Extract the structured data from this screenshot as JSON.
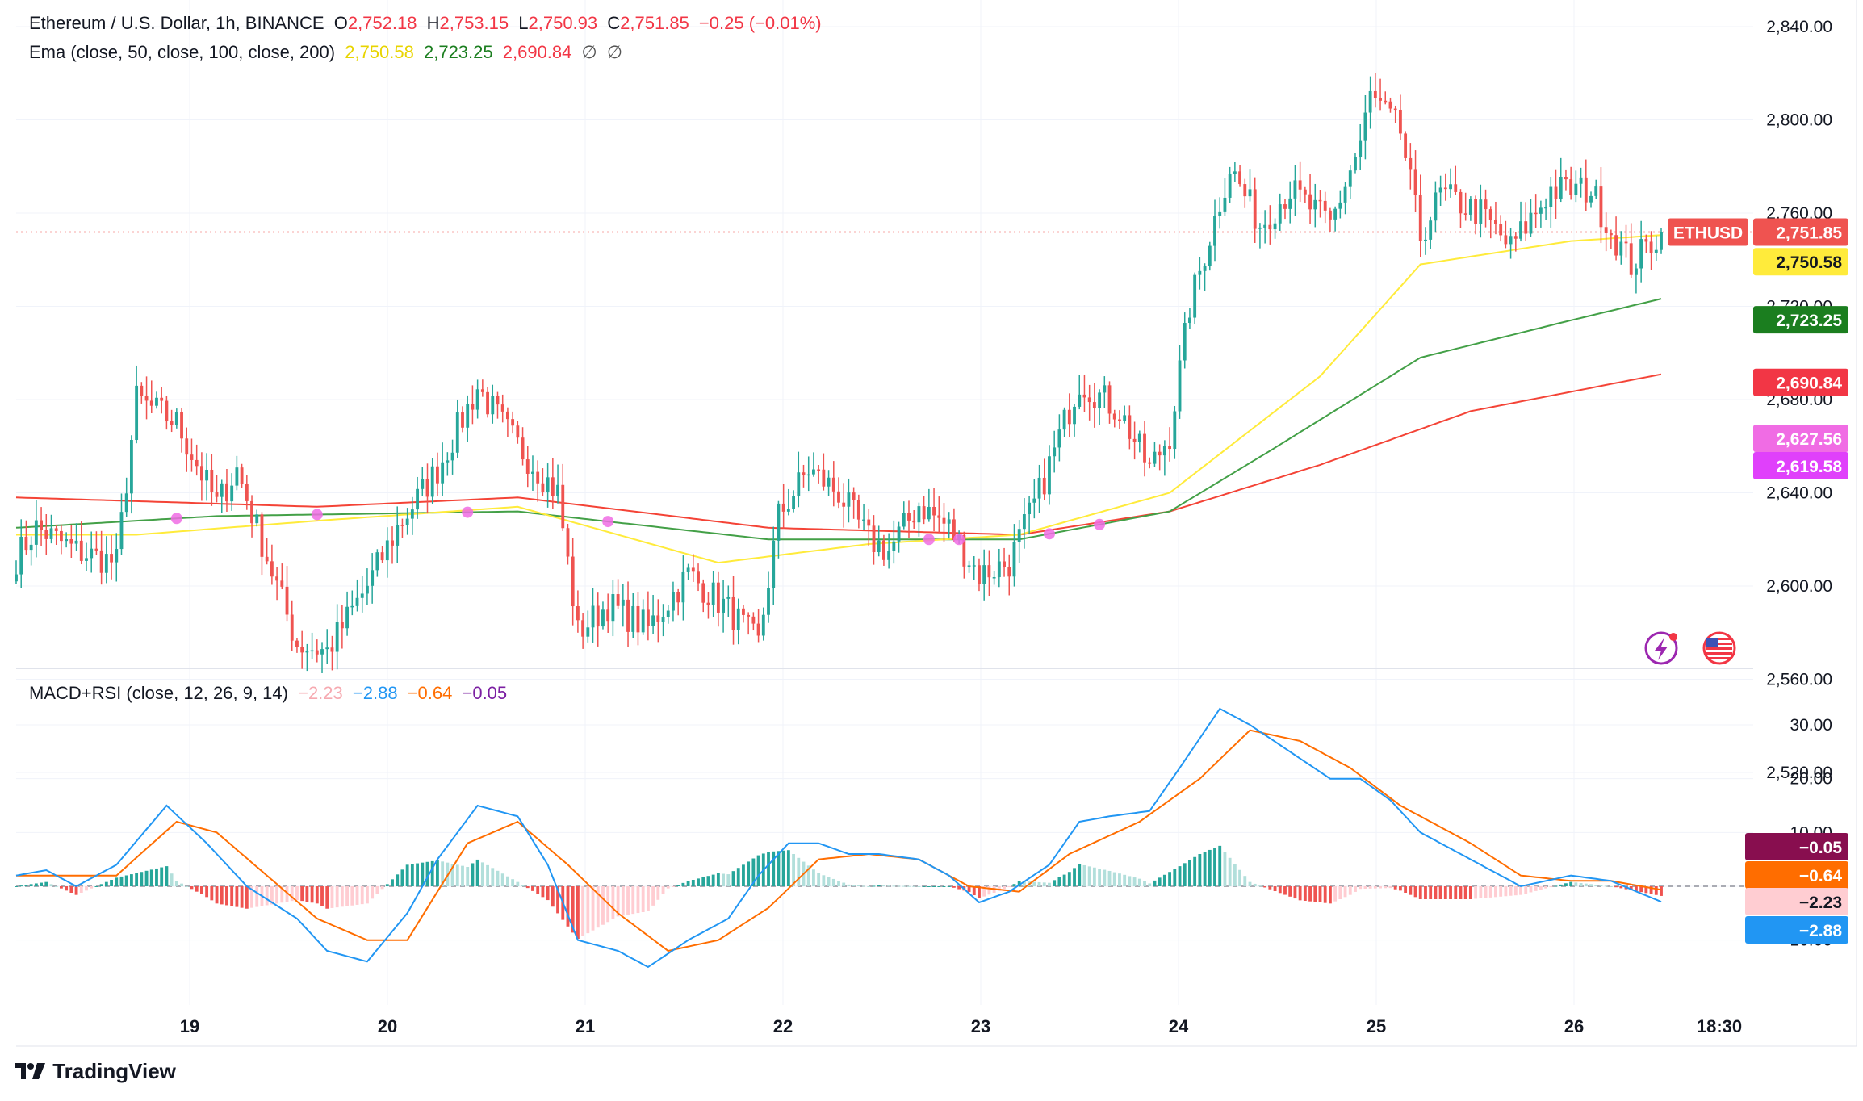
{
  "header": {
    "symbol": "Ethereum / U.S. Dollar, 1h, BINANCE",
    "open_label": "O",
    "open": "2,752.18",
    "high_label": "H",
    "high": "2,753.15",
    "low_label": "L",
    "low": "2,750.93",
    "close_label": "C",
    "close": "2,751.85",
    "change": "−0.25 (−0.01%)",
    "ema_label": "Ema (close, 50, close, 100, close, 200)",
    "ema50": "2,750.58",
    "ema100": "2,723.25",
    "ema200": "2,690.84",
    "ema_extra1": "∅",
    "ema_extra2": "∅",
    "macd_label": "MACD+RSI (close, 12, 26, 9, 14)",
    "macd_hist": "−2.23",
    "macd_line": "−2.88",
    "macd_signal": "−0.64",
    "rsi": "−0.05"
  },
  "branding": {
    "logo_text": "TradingView"
  },
  "colors": {
    "up": "#26a69a",
    "down": "#ef5350",
    "ema50": "#ffeb3b",
    "ema100": "#43a047",
    "ema200": "#f44336",
    "macd": "#2196f3",
    "signal": "#ff6d00",
    "hist_up_strong": "#26a69a",
    "hist_up_weak": "#b2dfdb",
    "hist_down_strong": "#ef5350",
    "hist_down_weak": "#ffcdd2",
    "marker": "#f06ce4"
  },
  "icons": [
    "flash-icon",
    "us-flag-icon",
    "tradingview-logo-icon"
  ],
  "chart_data": [
    {
      "type": "candlestick",
      "series_name": "ETHUSD",
      "timeframe": "1h",
      "y_ticks": [
        "2,840.00",
        "2,800.00",
        "2,760.00",
        "2,720.00",
        "2,680.00",
        "2,640.00",
        "2,600.00",
        "2,560.00",
        "2,520.00"
      ],
      "ylim": [
        2510,
        2850
      ],
      "x_ticks": [
        "19",
        "20",
        "21",
        "22",
        "23",
        "24",
        "25",
        "26",
        "18:30"
      ],
      "anchors": [
        [
          0,
          2612
        ],
        [
          4,
          2625
        ],
        [
          12,
          2615
        ],
        [
          20,
          2610
        ],
        [
          24,
          2680
        ],
        [
          32,
          2670
        ],
        [
          40,
          2635
        ],
        [
          44,
          2650
        ],
        [
          48,
          2625
        ],
        [
          56,
          2575
        ],
        [
          62,
          2572
        ],
        [
          70,
          2600
        ],
        [
          76,
          2625
        ],
        [
          84,
          2650
        ],
        [
          92,
          2685
        ],
        [
          100,
          2660
        ],
        [
          108,
          2640
        ],
        [
          112,
          2580
        ],
        [
          118,
          2592
        ],
        [
          126,
          2582
        ],
        [
          134,
          2605
        ],
        [
          142,
          2590
        ],
        [
          148,
          2575
        ],
        [
          152,
          2630
        ],
        [
          158,
          2650
        ],
        [
          164,
          2640
        ],
        [
          170,
          2620
        ],
        [
          174,
          2615
        ],
        [
          180,
          2635
        ],
        [
          186,
          2625
        ],
        [
          192,
          2605
        ],
        [
          198,
          2610
        ],
        [
          204,
          2640
        ],
        [
          212,
          2688
        ],
        [
          220,
          2675
        ],
        [
          226,
          2650
        ],
        [
          230,
          2665
        ],
        [
          234,
          2720
        ],
        [
          238,
          2750
        ],
        [
          242,
          2780
        ],
        [
          248,
          2755
        ],
        [
          254,
          2770
        ],
        [
          262,
          2755
        ],
        [
          268,
          2790
        ],
        [
          270,
          2810
        ],
        [
          276,
          2795
        ],
        [
          280,
          2750
        ],
        [
          284,
          2768
        ],
        [
          292,
          2760
        ],
        [
          298,
          2745
        ],
        [
          306,
          2770
        ],
        [
          314,
          2770
        ],
        [
          318,
          2752
        ],
        [
          322,
          2738
        ],
        [
          328,
          2751.85
        ]
      ],
      "ema50_points": [
        [
          0,
          2622
        ],
        [
          24,
          2622
        ],
        [
          60,
          2628
        ],
        [
          100,
          2634
        ],
        [
          140,
          2610
        ],
        [
          170,
          2618
        ],
        [
          200,
          2622
        ],
        [
          230,
          2640
        ],
        [
          260,
          2690
        ],
        [
          280,
          2738
        ],
        [
          310,
          2748
        ],
        [
          328,
          2750.58
        ]
      ],
      "ema100_points": [
        [
          0,
          2625
        ],
        [
          40,
          2630
        ],
        [
          100,
          2632
        ],
        [
          150,
          2620
        ],
        [
          200,
          2620
        ],
        [
          230,
          2632
        ],
        [
          250,
          2658
        ],
        [
          280,
          2698
        ],
        [
          310,
          2714
        ],
        [
          328,
          2723.25
        ]
      ],
      "ema200_points": [
        [
          0,
          2638
        ],
        [
          60,
          2634
        ],
        [
          100,
          2638
        ],
        [
          150,
          2625
        ],
        [
          200,
          2622
        ],
        [
          230,
          2632
        ],
        [
          260,
          2652
        ],
        [
          290,
          2675
        ],
        [
          328,
          2690.84
        ]
      ],
      "cross_markers": [
        32,
        60,
        90,
        118,
        182,
        188,
        206,
        216
      ],
      "last_price": "2,751.85",
      "price_badges": [
        {
          "label": "ETHUSD",
          "value": "2,751.85",
          "color": "#ef5350"
        },
        {
          "value": "2,750.58",
          "color": "#ffeb3b"
        },
        {
          "value": "2,723.25",
          "color": "#1b7e1f"
        },
        {
          "value": "2,690.84",
          "color": "#f23645"
        },
        {
          "value": "2,627.56",
          "color": "#f06ce4"
        },
        {
          "value": "2,619.58",
          "color": "#e040fb"
        }
      ]
    },
    {
      "type": "macd",
      "y_ticks": [
        "30.00",
        "20.00",
        "10.00",
        "0",
        "−10.00"
      ],
      "ylim": [
        -22,
        33
      ],
      "macd_points": [
        [
          0,
          2
        ],
        [
          6,
          3
        ],
        [
          12,
          0
        ],
        [
          20,
          4
        ],
        [
          30,
          15
        ],
        [
          38,
          8
        ],
        [
          46,
          0
        ],
        [
          56,
          -6
        ],
        [
          62,
          -12
        ],
        [
          70,
          -14
        ],
        [
          78,
          -5
        ],
        [
          84,
          5
        ],
        [
          92,
          15
        ],
        [
          100,
          13
        ],
        [
          106,
          4
        ],
        [
          112,
          -10
        ],
        [
          120,
          -12
        ],
        [
          126,
          -15
        ],
        [
          134,
          -10
        ],
        [
          142,
          -6
        ],
        [
          148,
          2
        ],
        [
          154,
          8
        ],
        [
          160,
          8
        ],
        [
          166,
          6
        ],
        [
          172,
          6
        ],
        [
          180,
          5
        ],
        [
          186,
          2
        ],
        [
          192,
          -3
        ],
        [
          198,
          -1
        ],
        [
          206,
          4
        ],
        [
          212,
          12
        ],
        [
          218,
          13
        ],
        [
          226,
          14
        ],
        [
          232,
          22
        ],
        [
          240,
          33
        ],
        [
          246,
          30
        ],
        [
          254,
          25
        ],
        [
          262,
          20
        ],
        [
          268,
          20
        ],
        [
          274,
          16
        ],
        [
          280,
          10
        ],
        [
          290,
          5
        ],
        [
          300,
          0
        ],
        [
          310,
          2
        ],
        [
          318,
          1
        ],
        [
          328,
          -2.88
        ]
      ],
      "signal_points": [
        [
          0,
          2
        ],
        [
          10,
          2
        ],
        [
          20,
          2
        ],
        [
          32,
          12
        ],
        [
          40,
          10
        ],
        [
          50,
          2
        ],
        [
          60,
          -6
        ],
        [
          70,
          -10
        ],
        [
          78,
          -10
        ],
        [
          90,
          8
        ],
        [
          100,
          12
        ],
        [
          110,
          4
        ],
        [
          120,
          -5
        ],
        [
          130,
          -12
        ],
        [
          140,
          -10
        ],
        [
          150,
          -4
        ],
        [
          160,
          5
        ],
        [
          170,
          6
        ],
        [
          180,
          5
        ],
        [
          190,
          0
        ],
        [
          200,
          -1
        ],
        [
          210,
          6
        ],
        [
          224,
          12
        ],
        [
          236,
          20
        ],
        [
          246,
          29
        ],
        [
          256,
          27
        ],
        [
          266,
          22
        ],
        [
          276,
          15
        ],
        [
          290,
          8
        ],
        [
          300,
          2
        ],
        [
          310,
          1
        ],
        [
          318,
          1
        ],
        [
          328,
          -0.64
        ]
      ],
      "last_macd": "−2.88",
      "last_signal": "−0.64",
      "last_hist": "−2.23",
      "last_rsi": "−0.05"
    }
  ]
}
